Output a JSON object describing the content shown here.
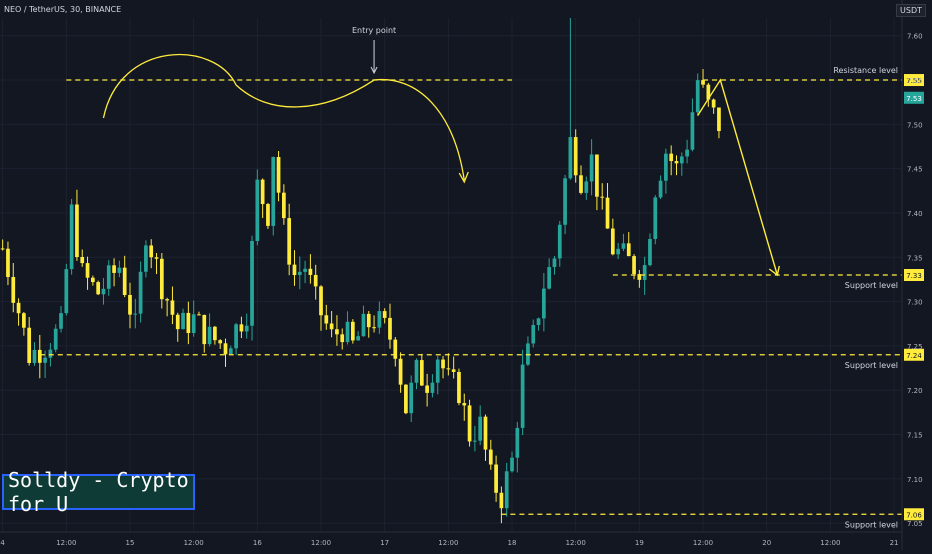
{
  "header": {
    "symbol_line": "NEO / TetherUS, 30, BINANCE",
    "currency": "USDT"
  },
  "watermark": "Solldy - Crypto for U",
  "colors": {
    "background": "#131722",
    "up": "#26a69a",
    "down": "#ffeb3b",
    "annotation": "#ffeb3b",
    "grid": "#1e2230"
  },
  "chart_data": {
    "type": "candlestick",
    "y_axis": {
      "min": 7.04,
      "max": 7.62,
      "ticks": [
        7.05,
        7.1,
        7.15,
        7.2,
        7.25,
        7.3,
        7.35,
        7.4,
        7.45,
        7.5,
        7.55,
        7.6
      ],
      "tick_labels": [
        "7.05",
        "7.10",
        "7.15",
        "7.20",
        "7.25",
        "7.30",
        "7.35",
        "7.40",
        "7.45",
        "7.50",
        "7.55",
        "7.60"
      ]
    },
    "x_axis": {
      "labels": [
        "4",
        "12:00",
        "15",
        "12:00",
        "16",
        "12:00",
        "17",
        "12:00",
        "18",
        "12:00",
        "19",
        "12:00",
        "20",
        "12:00",
        "21"
      ],
      "label_index": [
        0,
        12,
        24,
        36,
        48,
        60,
        72,
        84,
        96,
        108,
        120,
        132,
        144,
        156,
        168
      ]
    },
    "num_bars": 170,
    "anchors": [
      [
        0,
        7.36
      ],
      [
        3,
        7.29
      ],
      [
        5,
        7.24
      ],
      [
        8,
        7.25
      ],
      [
        11,
        7.27
      ],
      [
        13,
        7.4
      ],
      [
        15,
        7.33
      ],
      [
        18,
        7.31
      ],
      [
        22,
        7.34
      ],
      [
        25,
        7.27
      ],
      [
        27,
        7.38
      ],
      [
        30,
        7.32
      ],
      [
        33,
        7.27
      ],
      [
        36,
        7.28
      ],
      [
        39,
        7.26
      ],
      [
        42,
        7.25
      ],
      [
        44,
        7.27
      ],
      [
        46,
        7.29
      ],
      [
        48,
        7.43
      ],
      [
        50,
        7.4
      ],
      [
        51,
        7.47
      ],
      [
        53,
        7.38
      ],
      [
        55,
        7.33
      ],
      [
        57,
        7.34
      ],
      [
        59,
        7.3
      ],
      [
        62,
        7.26
      ],
      [
        64,
        7.27
      ],
      [
        66,
        7.25
      ],
      [
        68,
        7.27
      ],
      [
        70,
        7.28
      ],
      [
        72,
        7.27
      ],
      [
        74,
        7.25
      ],
      [
        76,
        7.18
      ],
      [
        78,
        7.22
      ],
      [
        80,
        7.21
      ],
      [
        82,
        7.24
      ],
      [
        84,
        7.21
      ],
      [
        86,
        7.2
      ],
      [
        88,
        7.15
      ],
      [
        90,
        7.16
      ],
      [
        92,
        7.1
      ],
      [
        94,
        7.08
      ],
      [
        96,
        7.12
      ],
      [
        98,
        7.22
      ],
      [
        100,
        7.26
      ],
      [
        102,
        7.32
      ],
      [
        104,
        7.35
      ],
      [
        107,
        7.48
      ],
      [
        109,
        7.44
      ],
      [
        111,
        7.46
      ],
      [
        113,
        7.4
      ],
      [
        115,
        7.36
      ],
      [
        117,
        7.35
      ],
      [
        119,
        7.34
      ],
      [
        121,
        7.34
      ],
      [
        123,
        7.43
      ],
      [
        125,
        7.47
      ],
      [
        127,
        7.45
      ],
      [
        129,
        7.48
      ],
      [
        131,
        7.55
      ],
      [
        133,
        7.52
      ],
      [
        135,
        7.5
      ]
    ],
    "series": [],
    "annotations": {
      "resistance": {
        "label": "Resistance level",
        "price": 7.55,
        "price_label": "7.55"
      },
      "supports": [
        {
          "label": "Support level",
          "price": 7.33,
          "price_label": "7.33"
        },
        {
          "label": "Support level",
          "price": 7.24,
          "price_label": "7.24"
        },
        {
          "label": "Support level",
          "price": 7.06,
          "price_label": "7.06"
        }
      ],
      "current_price": {
        "price": 7.53,
        "price_label": "7.53"
      },
      "entry_point": {
        "label": "Entry point",
        "price": 7.55
      }
    }
  }
}
